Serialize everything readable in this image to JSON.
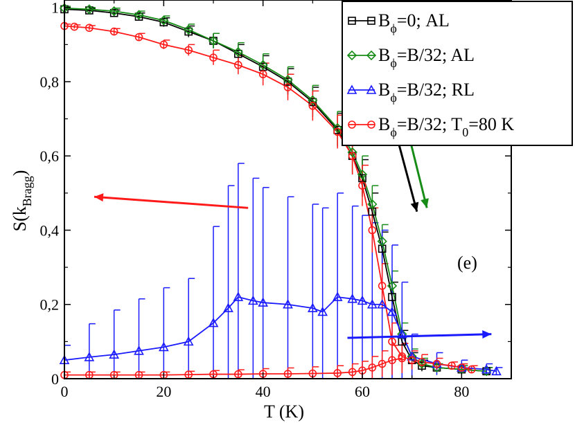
{
  "chart_data": {
    "type": "line",
    "xlabel": "T (K)",
    "ylabel": "S(k",
    "ylabel_sub": "Bragg",
    "ylabel_close": ")",
    "xlim": [
      0,
      90
    ],
    "ylim": [
      0,
      1.02
    ],
    "x_ticks": [
      0,
      20,
      40,
      60,
      80
    ],
    "x_tick_labels": [
      "0",
      "20",
      "40",
      "60",
      "80"
    ],
    "y_ticks": [
      0,
      0.2,
      0.4,
      0.6,
      0.8,
      1.0
    ],
    "y_tick_labels": [
      "0",
      "0,2",
      "0,4",
      "0,6",
      "0,8",
      "1"
    ],
    "panel_label": "(e)",
    "legend_position": "top-right",
    "series": [
      {
        "name": "black",
        "legend": {
          "pre": "B",
          "sub1": "ϕ",
          "post": "=0; AL",
          "sub2": "",
          "post2": ""
        },
        "marker": "square",
        "color": "#000000",
        "x": [
          0,
          5,
          10,
          15,
          20,
          25,
          30,
          35,
          40,
          45,
          50,
          55,
          58,
          60,
          62,
          64,
          66,
          68,
          70,
          72,
          75,
          80,
          85
        ],
        "y": [
          0.995,
          0.992,
          0.985,
          0.975,
          0.96,
          0.935,
          0.91,
          0.875,
          0.84,
          0.8,
          0.745,
          0.67,
          0.6,
          0.54,
          0.45,
          0.35,
          0.22,
          0.1,
          0.05,
          0.035,
          0.03,
          0.025,
          0.02
        ],
        "err": [
          0.005,
          0.005,
          0.008,
          0.01,
          0.012,
          0.015,
          0.02,
          0.025,
          0.03,
          0.035,
          0.04,
          0.045,
          0.05,
          0.05,
          0.05,
          0.045,
          0.04,
          0.03,
          0.02,
          0.015,
          0.01,
          0.01,
          0.01
        ]
      },
      {
        "name": "green",
        "legend": {
          "pre": "B",
          "sub1": "ϕ",
          "post": "=B/32; AL",
          "sub2": "",
          "post2": ""
        },
        "marker": "diamond",
        "color": "#168c16",
        "x": [
          0,
          5,
          10,
          15,
          20,
          25,
          30,
          35,
          40,
          45,
          50,
          55,
          58,
          60,
          62,
          64,
          66,
          68,
          70,
          72,
          75,
          80,
          85
        ],
        "y": [
          0.998,
          0.995,
          0.99,
          0.98,
          0.965,
          0.94,
          0.91,
          0.88,
          0.845,
          0.805,
          0.75,
          0.675,
          0.61,
          0.55,
          0.47,
          0.37,
          0.25,
          0.12,
          0.06,
          0.04,
          0.03,
          0.025,
          0.02
        ],
        "err": [
          0.005,
          0.005,
          0.008,
          0.01,
          0.012,
          0.015,
          0.02,
          0.025,
          0.03,
          0.035,
          0.04,
          0.045,
          0.05,
          0.05,
          0.05,
          0.045,
          0.04,
          0.03,
          0.02,
          0.015,
          0.01,
          0.01,
          0.01
        ]
      },
      {
        "name": "blue",
        "legend": {
          "pre": "B",
          "sub1": "ϕ",
          "post": "=B/32; RL",
          "sub2": "",
          "post2": ""
        },
        "marker": "triangle",
        "color": "#1a1aff",
        "x": [
          0,
          5,
          10,
          15,
          20,
          25,
          30,
          33,
          35,
          38,
          40,
          45,
          50,
          52,
          55,
          58,
          60,
          62,
          64,
          66,
          68,
          70,
          75,
          80,
          85,
          87
        ],
        "y": [
          0.05,
          0.058,
          0.065,
          0.075,
          0.085,
          0.1,
          0.15,
          0.19,
          0.22,
          0.21,
          0.205,
          0.2,
          0.19,
          0.18,
          0.22,
          0.215,
          0.21,
          0.2,
          0.2,
          0.18,
          0.12,
          0.06,
          0.04,
          0.03,
          0.025,
          0.02
        ],
        "err": [
          0.04,
          0.09,
          0.12,
          0.14,
          0.16,
          0.17,
          0.26,
          0.33,
          0.36,
          0.33,
          0.31,
          0.29,
          0.28,
          0.28,
          0.28,
          0.25,
          0.23,
          0.22,
          0.2,
          0.18,
          0.14,
          0.06,
          0.03,
          0.02,
          0.015,
          0.01
        ]
      },
      {
        "name": "red",
        "legend": {
          "pre": "B",
          "sub1": "ϕ",
          "post": "=B/32; T",
          "sub2": "0",
          "post2": "=80 K"
        },
        "marker": "circle",
        "color": "#ff1a1a",
        "x": [
          0,
          2,
          5,
          10,
          15,
          20,
          25,
          30,
          35,
          40,
          45,
          50,
          55,
          58,
          60,
          62,
          64,
          66,
          68,
          70,
          72,
          75,
          78,
          80,
          82
        ],
        "y": [
          0.95,
          0.948,
          0.945,
          0.935,
          0.92,
          0.9,
          0.885,
          0.865,
          0.845,
          0.82,
          0.785,
          0.735,
          0.665,
          0.6,
          0.52,
          0.4,
          0.25,
          0.1,
          0.06,
          0.05,
          0.045,
          0.04,
          0.035,
          0.03,
          0.025
        ],
        "err": [
          0.005,
          0.005,
          0.006,
          0.008,
          0.01,
          0.012,
          0.015,
          0.02,
          0.025,
          0.03,
          0.035,
          0.04,
          0.045,
          0.05,
          0.055,
          0.06,
          0.06,
          0.05,
          0.035,
          0.025,
          0.02,
          0.015,
          0.01,
          0.01,
          0.01
        ]
      },
      {
        "name": "red-baseline",
        "legend": null,
        "marker": "circle",
        "color": "#ff1a1a",
        "x": [
          0,
          5,
          10,
          15,
          20,
          25,
          30,
          35,
          40,
          45,
          50,
          55,
          58,
          60,
          62,
          64,
          66,
          68
        ],
        "y": [
          0.01,
          0.01,
          0.01,
          0.01,
          0.01,
          0.011,
          0.012,
          0.012,
          0.013,
          0.013,
          0.014,
          0.015,
          0.018,
          0.022,
          0.03,
          0.04,
          0.05,
          0.055
        ],
        "err": [
          0.008,
          0.008,
          0.008,
          0.008,
          0.008,
          0.009,
          0.01,
          0.012,
          0.014,
          0.016,
          0.018,
          0.02,
          0.022,
          0.025,
          0.03,
          0.035,
          0.04,
          0.04
        ]
      }
    ],
    "arrows": [
      {
        "name": "red-arrow",
        "color": "#ff1a1a",
        "from": [
          37,
          0.46
        ],
        "to": [
          6,
          0.49
        ]
      },
      {
        "name": "blue-arrow",
        "color": "#1a1aff",
        "from": [
          57,
          0.11
        ],
        "to": [
          86,
          0.12
        ]
      },
      {
        "name": "black-arrow",
        "color": "#000000",
        "from": [
          66,
          0.7
        ],
        "to": [
          71,
          0.45
        ]
      },
      {
        "name": "green-arrow",
        "color": "#168c16",
        "from": [
          68,
          0.73
        ],
        "to": [
          73,
          0.46
        ]
      }
    ]
  }
}
